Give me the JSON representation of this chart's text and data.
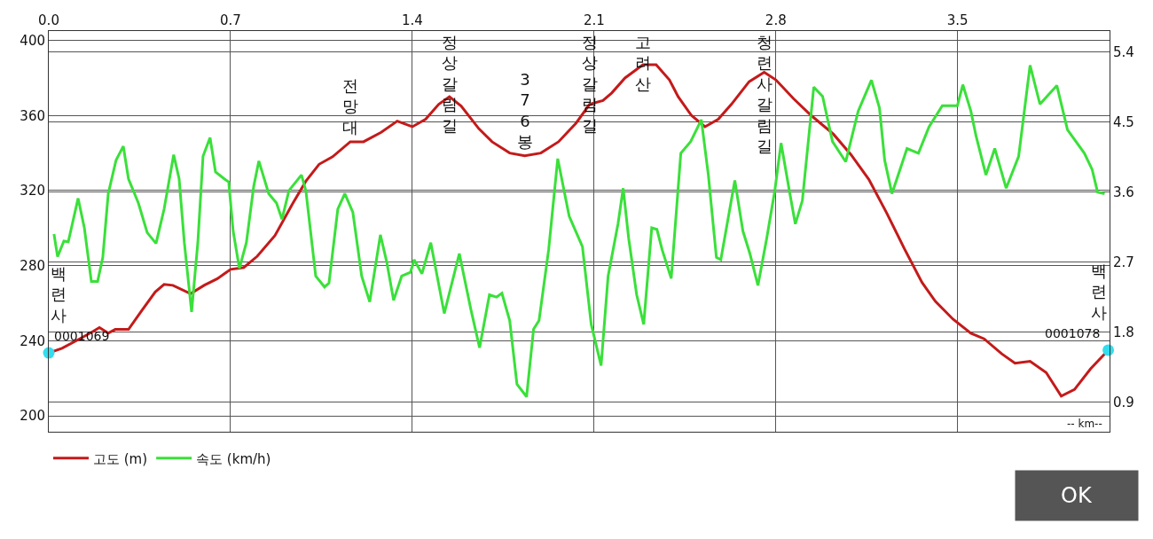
{
  "chart_data": {
    "type": "line",
    "xlabel": "-- km--",
    "xlim": [
      0,
      4.085
    ],
    "xticks": [
      {
        "value": 0,
        "label": "0.0"
      },
      0.7,
      1.4,
      2.1,
      2.8,
      3.5
    ],
    "ylim": [
      191.5,
      405
    ],
    "yticks": [
      200,
      240,
      280,
      320,
      360,
      400
    ],
    "y2lim": [
      0.52,
      5.67
    ],
    "y2ticks": [
      0.9,
      1.8,
      2.7,
      3.6,
      4.5,
      5.4
    ],
    "grid": true,
    "legend": "bottom left",
    "series": [
      {
        "name": "고도 (m)",
        "color": "#c41a1a",
        "x": [
          0.0,
          0.051,
          0.119,
          0.171,
          0.195,
          0.229,
          0.256,
          0.307,
          0.358,
          0.41,
          0.444,
          0.478,
          0.546,
          0.598,
          0.649,
          0.7,
          0.751,
          0.803,
          0.871,
          0.939,
          0.99,
          1.041,
          1.093,
          1.161,
          1.212,
          1.28,
          1.342,
          1.4,
          1.451,
          1.502,
          1.543,
          1.588,
          1.656,
          1.707,
          1.775,
          1.833,
          1.895,
          1.963,
          2.031,
          2.083,
          2.134,
          2.168,
          2.219,
          2.288,
          2.339,
          2.39,
          2.424,
          2.475,
          2.527,
          2.578,
          2.629,
          2.697,
          2.755,
          2.8,
          2.868,
          2.936,
          3.022,
          3.09,
          3.158,
          3.227,
          3.295,
          3.363,
          3.414,
          3.482,
          3.551,
          3.602,
          3.67,
          3.721,
          3.779,
          3.841,
          3.899,
          3.95,
          4.012,
          4.08
        ],
        "values": [
          233.5,
          236,
          241,
          245,
          247,
          244,
          246,
          246,
          256,
          266,
          270,
          269.5,
          265,
          269.5,
          273,
          278,
          279,
          285,
          296,
          313,
          325,
          334,
          338,
          346,
          346,
          351,
          357,
          354,
          358,
          366,
          370,
          365,
          353,
          346,
          340,
          338.5,
          340,
          346,
          356,
          366,
          368,
          372,
          380,
          387,
          387,
          379,
          370,
          360,
          354,
          358,
          366,
          378,
          383,
          379,
          369,
          360,
          350,
          339,
          326,
          308,
          289,
          271,
          261,
          251.5,
          244,
          241,
          233,
          228,
          229,
          223,
          210.5,
          214,
          225,
          235
        ]
      },
      {
        "name": "속도 (km/h)",
        "color": "#3ae03a",
        "axis": "y2",
        "x": [
          0.02,
          0.034,
          0.058,
          0.075,
          0.113,
          0.137,
          0.164,
          0.188,
          0.208,
          0.229,
          0.259,
          0.287,
          0.307,
          0.345,
          0.379,
          0.413,
          0.444,
          0.481,
          0.502,
          0.522,
          0.55,
          0.574,
          0.594,
          0.621,
          0.642,
          0.676,
          0.693,
          0.71,
          0.734,
          0.761,
          0.789,
          0.809,
          0.847,
          0.877,
          0.898,
          0.925,
          0.973,
          0.99,
          1.028,
          1.062,
          1.079,
          1.113,
          1.14,
          1.171,
          1.205,
          1.236,
          1.277,
          1.301,
          1.328,
          1.359,
          1.393,
          1.407,
          1.437,
          1.471,
          1.523,
          1.581,
          1.625,
          1.659,
          1.697,
          1.724,
          1.745,
          1.775,
          1.803,
          1.84,
          1.867,
          1.888,
          1.925,
          1.96,
          2.004,
          2.055,
          2.089,
          2.127,
          2.154,
          2.192,
          2.212,
          2.233,
          2.264,
          2.291,
          2.322,
          2.342,
          2.362,
          2.397,
          2.434,
          2.472,
          2.513,
          2.54,
          2.571,
          2.588,
          2.642,
          2.673,
          2.7,
          2.731,
          2.765,
          2.796,
          2.82,
          2.854,
          2.875,
          2.902,
          2.946,
          2.98,
          3.018,
          3.069,
          3.117,
          3.168,
          3.199,
          3.219,
          3.247,
          3.305,
          3.349,
          3.39,
          3.441,
          3.499,
          3.52,
          3.551,
          3.571,
          3.609,
          3.643,
          3.687,
          3.735,
          3.779,
          3.817,
          3.844,
          3.882,
          3.923,
          3.988,
          4.018,
          4.039,
          4.066
        ],
        "values": [
          3.06,
          2.77,
          2.97,
          2.96,
          3.52,
          3.14,
          2.45,
          2.45,
          2.76,
          3.58,
          4.01,
          4.19,
          3.77,
          3.46,
          3.08,
          2.94,
          3.38,
          4.08,
          3.77,
          2.95,
          2.06,
          2.95,
          4.06,
          4.3,
          3.86,
          3.77,
          3.73,
          3.1,
          2.62,
          2.95,
          3.67,
          4.0,
          3.58,
          3.46,
          3.25,
          3.62,
          3.82,
          3.62,
          2.52,
          2.38,
          2.43,
          3.38,
          3.58,
          3.34,
          2.52,
          2.19,
          3.05,
          2.71,
          2.21,
          2.52,
          2.57,
          2.73,
          2.55,
          2.95,
          2.04,
          2.81,
          2.1,
          1.6,
          2.28,
          2.25,
          2.3,
          1.95,
          1.13,
          0.97,
          1.84,
          1.95,
          2.86,
          4.03,
          3.29,
          2.9,
          1.9,
          1.37,
          2.52,
          3.19,
          3.65,
          3.01,
          2.28,
          1.9,
          3.14,
          3.12,
          2.86,
          2.49,
          4.1,
          4.25,
          4.53,
          3.82,
          2.76,
          2.73,
          3.75,
          3.1,
          2.81,
          2.4,
          3.01,
          3.62,
          4.23,
          3.58,
          3.19,
          3.49,
          4.95,
          4.83,
          4.25,
          3.99,
          4.64,
          5.04,
          4.68,
          4.01,
          3.58,
          4.16,
          4.1,
          4.44,
          4.71,
          4.71,
          4.98,
          4.64,
          4.32,
          3.82,
          4.16,
          3.65,
          4.06,
          5.23,
          4.73,
          4.83,
          4.97,
          4.4,
          4.1,
          3.89,
          3.6,
          3.58
        ]
      },
      {
        "type": "scatter",
        "color": "#33dded",
        "marker": "circle",
        "x": [
          0.0,
          4.08
        ],
        "values": [
          233.5,
          235
        ]
      }
    ],
    "annotations": [
      {
        "text": "백련사",
        "x": 0.0,
        "y": 233.5
      },
      {
        "text": "0001069",
        "x": 0.0,
        "y": 233.5
      },
      {
        "text": "0001078",
        "x": 4.08,
        "y": 235
      },
      {
        "text": "전망대",
        "x": 1.161,
        "y": 346
      },
      {
        "text": "정상갈림길",
        "x": 1.543,
        "y": 370
      },
      {
        "text": "376봉",
        "x": 1.833,
        "y": 338.5
      },
      {
        "text": "정상갈림길",
        "x": 2.083,
        "y": 366
      },
      {
        "text": "고려산",
        "x": 2.288,
        "y": 387
      },
      {
        "text": "청련사갈림길",
        "x": 2.755,
        "y": 383
      },
      {
        "text": "백련사",
        "x": 4.08,
        "y": 235
      },
      "OK"
    ]
  }
}
